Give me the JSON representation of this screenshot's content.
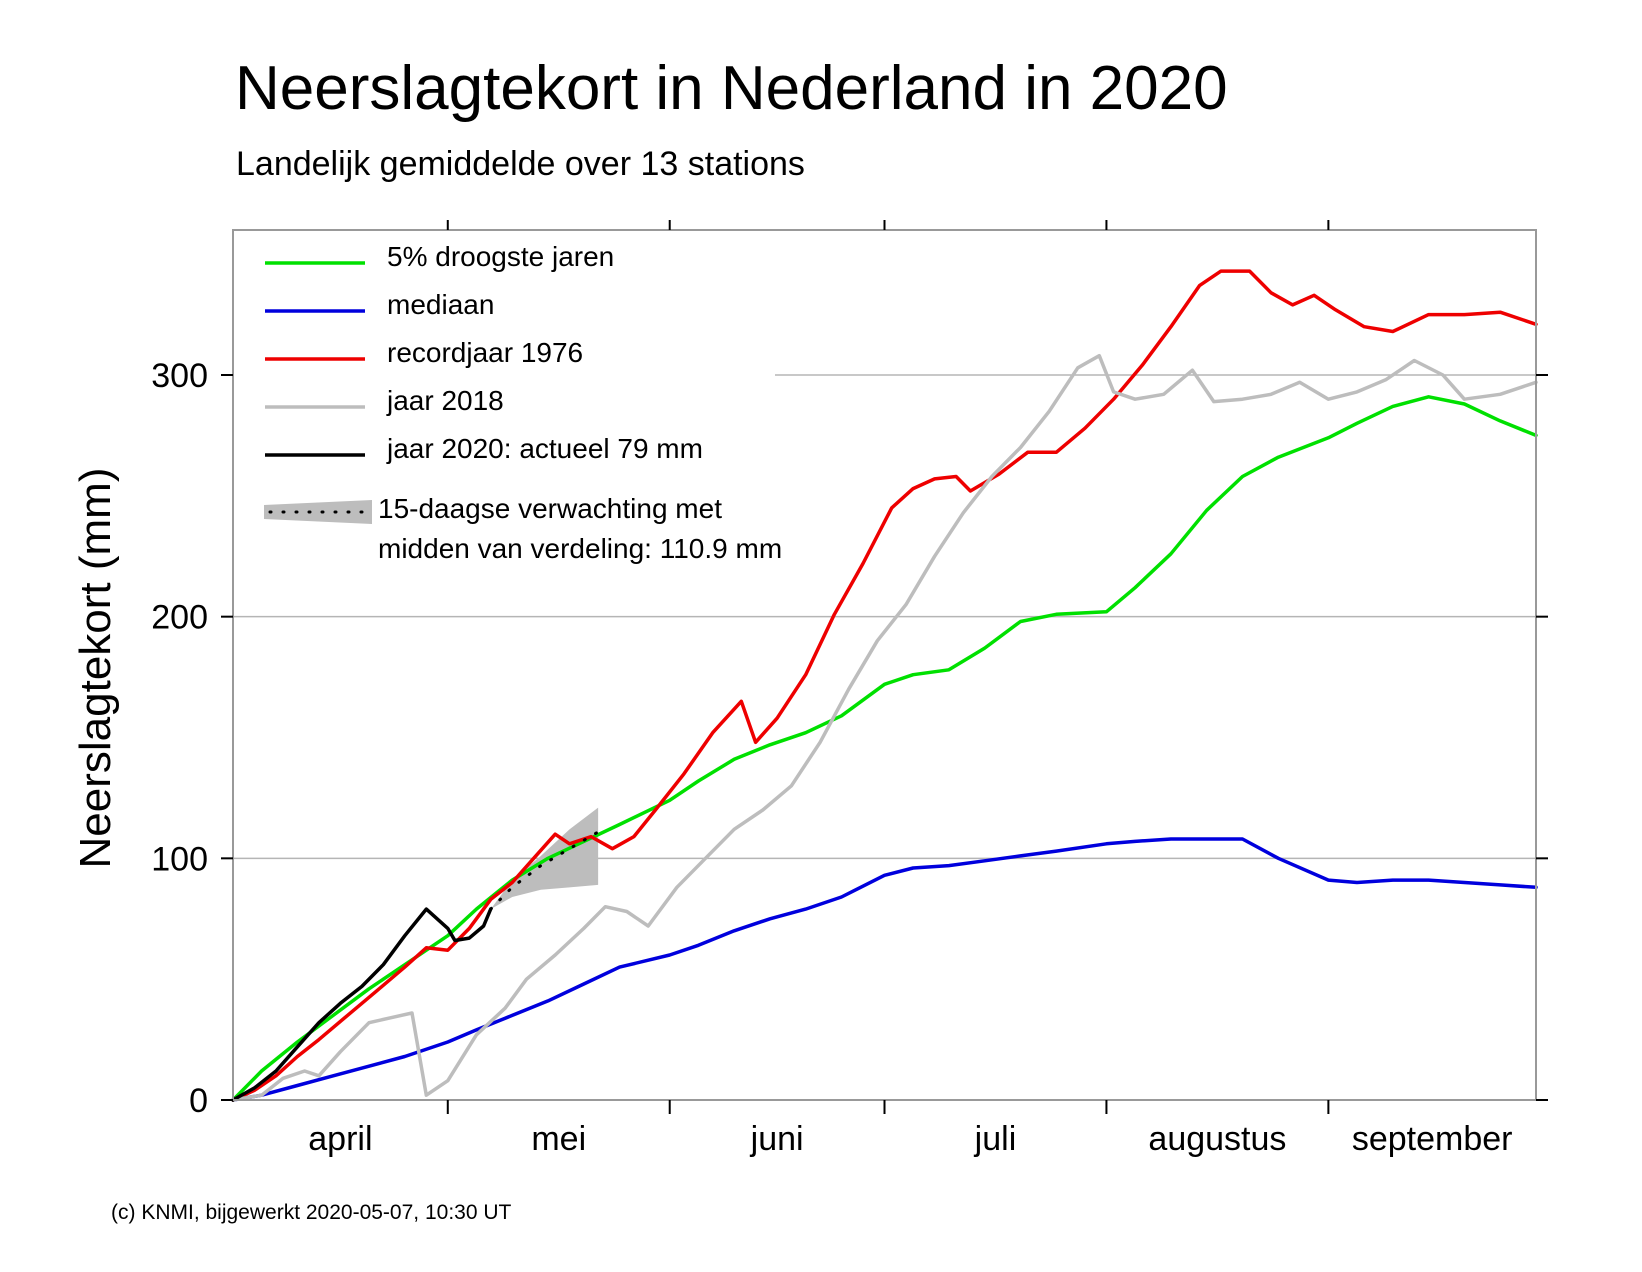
{
  "chart_data": {
    "type": "line",
    "title": "Neerslagtekort in Nederland in 2020",
    "subtitle": "Landelijk gemiddelde over 13 stations",
    "ylabel": "Neerslagtekort (mm)",
    "xlabel": "",
    "ylim": [
      0,
      360
    ],
    "x_range": [
      "2020-04-01",
      "2020-09-30"
    ],
    "yticks": [
      0,
      100,
      200,
      300
    ],
    "month_labels": [
      "april",
      "mei",
      "juni",
      "juli",
      "augustus",
      "september"
    ],
    "month_starts": [
      "2020-04-01",
      "2020-05-01",
      "2020-06-01",
      "2020-07-01",
      "2020-08-01",
      "2020-09-01",
      "2020-10-01"
    ],
    "grid": true,
    "legend_position": "top-left",
    "footer": "(c) KNMI, bijgewerkt 2020-05-07, 10:30 UT",
    "series": [
      {
        "name": "5% droogste jaren",
        "color": "#00e000",
        "points": [
          [
            "2020-04-01",
            0
          ],
          [
            "2020-04-05",
            12
          ],
          [
            "2020-04-10",
            24
          ],
          [
            "2020-04-15",
            35
          ],
          [
            "2020-04-20",
            46
          ],
          [
            "2020-04-25",
            56
          ],
          [
            "2020-05-01",
            68
          ],
          [
            "2020-05-05",
            79
          ],
          [
            "2020-05-10",
            91
          ],
          [
            "2020-05-15",
            100
          ],
          [
            "2020-05-20",
            107
          ],
          [
            "2020-05-25",
            114
          ],
          [
            "2020-06-01",
            124
          ],
          [
            "2020-06-05",
            132
          ],
          [
            "2020-06-10",
            141
          ],
          [
            "2020-06-15",
            147
          ],
          [
            "2020-06-20",
            152
          ],
          [
            "2020-06-25",
            159
          ],
          [
            "2020-07-01",
            172
          ],
          [
            "2020-07-05",
            176
          ],
          [
            "2020-07-10",
            178
          ],
          [
            "2020-07-15",
            187
          ],
          [
            "2020-07-20",
            198
          ],
          [
            "2020-07-25",
            201
          ],
          [
            "2020-08-01",
            202
          ],
          [
            "2020-08-05",
            212
          ],
          [
            "2020-08-10",
            226
          ],
          [
            "2020-08-15",
            244
          ],
          [
            "2020-08-20",
            258
          ],
          [
            "2020-08-25",
            266
          ],
          [
            "2020-09-01",
            274
          ],
          [
            "2020-09-05",
            280
          ],
          [
            "2020-09-10",
            287
          ],
          [
            "2020-09-15",
            291
          ],
          [
            "2020-09-20",
            288
          ],
          [
            "2020-09-25",
            281
          ],
          [
            "2020-09-30",
            275
          ]
        ]
      },
      {
        "name": "mediaan",
        "color": "#0000dd",
        "points": [
          [
            "2020-04-01",
            0
          ],
          [
            "2020-04-05",
            2
          ],
          [
            "2020-04-10",
            6
          ],
          [
            "2020-04-15",
            10
          ],
          [
            "2020-04-20",
            14
          ],
          [
            "2020-04-25",
            18
          ],
          [
            "2020-05-01",
            24
          ],
          [
            "2020-05-05",
            29
          ],
          [
            "2020-05-10",
            35
          ],
          [
            "2020-05-15",
            41
          ],
          [
            "2020-05-20",
            48
          ],
          [
            "2020-05-25",
            55
          ],
          [
            "2020-06-01",
            60
          ],
          [
            "2020-06-05",
            64
          ],
          [
            "2020-06-10",
            70
          ],
          [
            "2020-06-15",
            75
          ],
          [
            "2020-06-20",
            79
          ],
          [
            "2020-06-25",
            84
          ],
          [
            "2020-07-01",
            93
          ],
          [
            "2020-07-05",
            96
          ],
          [
            "2020-07-10",
            97
          ],
          [
            "2020-07-15",
            99
          ],
          [
            "2020-07-20",
            101
          ],
          [
            "2020-07-25",
            103
          ],
          [
            "2020-08-01",
            106
          ],
          [
            "2020-08-05",
            107
          ],
          [
            "2020-08-10",
            108
          ],
          [
            "2020-08-15",
            108
          ],
          [
            "2020-08-20",
            108
          ],
          [
            "2020-08-25",
            100
          ],
          [
            "2020-09-01",
            91
          ],
          [
            "2020-09-05",
            90
          ],
          [
            "2020-09-10",
            91
          ],
          [
            "2020-09-15",
            91
          ],
          [
            "2020-09-20",
            90
          ],
          [
            "2020-09-25",
            89
          ],
          [
            "2020-09-30",
            88
          ]
        ]
      },
      {
        "name": "recordjaar 1976",
        "color": "#ee0000",
        "points": [
          [
            "2020-04-01",
            0
          ],
          [
            "2020-04-04",
            4
          ],
          [
            "2020-04-07",
            10
          ],
          [
            "2020-04-10",
            18
          ],
          [
            "2020-04-13",
            25
          ],
          [
            "2020-04-17",
            35
          ],
          [
            "2020-04-21",
            45
          ],
          [
            "2020-04-25",
            55
          ],
          [
            "2020-04-28",
            63
          ],
          [
            "2020-05-01",
            62
          ],
          [
            "2020-05-04",
            71
          ],
          [
            "2020-05-07",
            83
          ],
          [
            "2020-05-10",
            90
          ],
          [
            "2020-05-13",
            100
          ],
          [
            "2020-05-16",
            110
          ],
          [
            "2020-05-18",
            106
          ],
          [
            "2020-05-21",
            109
          ],
          [
            "2020-05-24",
            104
          ],
          [
            "2020-05-27",
            109
          ],
          [
            "2020-05-30",
            120
          ],
          [
            "2020-06-03",
            135
          ],
          [
            "2020-06-07",
            152
          ],
          [
            "2020-06-11",
            165
          ],
          [
            "2020-06-13",
            148
          ],
          [
            "2020-06-16",
            158
          ],
          [
            "2020-06-20",
            176
          ],
          [
            "2020-06-24",
            201
          ],
          [
            "2020-06-28",
            222
          ],
          [
            "2020-07-02",
            245
          ],
          [
            "2020-07-05",
            253
          ],
          [
            "2020-07-08",
            257
          ],
          [
            "2020-07-11",
            258
          ],
          [
            "2020-07-13",
            252
          ],
          [
            "2020-07-17",
            259
          ],
          [
            "2020-07-21",
            268
          ],
          [
            "2020-07-25",
            268
          ],
          [
            "2020-07-29",
            278
          ],
          [
            "2020-08-02",
            290
          ],
          [
            "2020-08-06",
            304
          ],
          [
            "2020-08-10",
            320
          ],
          [
            "2020-08-14",
            337
          ],
          [
            "2020-08-17",
            343
          ],
          [
            "2020-08-21",
            343
          ],
          [
            "2020-08-24",
            334
          ],
          [
            "2020-08-27",
            329
          ],
          [
            "2020-08-30",
            333
          ],
          [
            "2020-09-02",
            327
          ],
          [
            "2020-09-06",
            320
          ],
          [
            "2020-09-10",
            318
          ],
          [
            "2020-09-15",
            325
          ],
          [
            "2020-09-20",
            325
          ],
          [
            "2020-09-25",
            326
          ],
          [
            "2020-09-30",
            321
          ]
        ]
      },
      {
        "name": "jaar 2018",
        "color": "#bdbdbd",
        "points": [
          [
            "2020-04-01",
            0
          ],
          [
            "2020-04-05",
            2
          ],
          [
            "2020-04-08",
            9
          ],
          [
            "2020-04-11",
            12
          ],
          [
            "2020-04-13",
            10
          ],
          [
            "2020-04-16",
            20
          ],
          [
            "2020-04-20",
            32
          ],
          [
            "2020-04-23",
            34
          ],
          [
            "2020-04-26",
            36
          ],
          [
            "2020-04-28",
            2
          ],
          [
            "2020-05-01",
            8
          ],
          [
            "2020-05-05",
            27
          ],
          [
            "2020-05-09",
            38
          ],
          [
            "2020-05-12",
            50
          ],
          [
            "2020-05-16",
            60
          ],
          [
            "2020-05-20",
            71
          ],
          [
            "2020-05-23",
            80
          ],
          [
            "2020-05-26",
            78
          ],
          [
            "2020-05-29",
            72
          ],
          [
            "2020-06-02",
            88
          ],
          [
            "2020-06-06",
            100
          ],
          [
            "2020-06-10",
            112
          ],
          [
            "2020-06-14",
            120
          ],
          [
            "2020-06-18",
            130
          ],
          [
            "2020-06-22",
            148
          ],
          [
            "2020-06-26",
            170
          ],
          [
            "2020-06-30",
            190
          ],
          [
            "2020-07-04",
            205
          ],
          [
            "2020-07-08",
            225
          ],
          [
            "2020-07-12",
            243
          ],
          [
            "2020-07-16",
            258
          ],
          [
            "2020-07-20",
            270
          ],
          [
            "2020-07-24",
            285
          ],
          [
            "2020-07-28",
            303
          ],
          [
            "2020-07-31",
            308
          ],
          [
            "2020-08-02",
            293
          ],
          [
            "2020-08-05",
            290
          ],
          [
            "2020-08-09",
            292
          ],
          [
            "2020-08-13",
            302
          ],
          [
            "2020-08-16",
            289
          ],
          [
            "2020-08-20",
            290
          ],
          [
            "2020-08-24",
            292
          ],
          [
            "2020-08-28",
            297
          ],
          [
            "2020-09-01",
            290
          ],
          [
            "2020-09-05",
            293
          ],
          [
            "2020-09-09",
            298
          ],
          [
            "2020-09-13",
            306
          ],
          [
            "2020-09-17",
            300
          ],
          [
            "2020-09-20",
            290
          ],
          [
            "2020-09-25",
            292
          ],
          [
            "2020-09-30",
            297
          ]
        ]
      },
      {
        "name": "jaar 2020: actueel 79 mm",
        "color": "#000000",
        "points": [
          [
            "2020-04-01",
            0
          ],
          [
            "2020-04-04",
            5
          ],
          [
            "2020-04-07",
            12
          ],
          [
            "2020-04-10",
            22
          ],
          [
            "2020-04-13",
            32
          ],
          [
            "2020-04-16",
            40
          ],
          [
            "2020-04-19",
            47
          ],
          [
            "2020-04-22",
            56
          ],
          [
            "2020-04-25",
            68
          ],
          [
            "2020-04-28",
            79
          ],
          [
            "2020-05-01",
            71
          ],
          [
            "2020-05-02",
            66
          ],
          [
            "2020-05-04",
            67
          ],
          [
            "2020-05-06",
            72
          ],
          [
            "2020-05-07",
            79
          ]
        ]
      }
    ],
    "forecast": {
      "name": "15-daagse verwachting met",
      "name_line2": "midden van verdeling: 110.9 mm",
      "median": [
        [
          "2020-05-07",
          79
        ],
        [
          "2020-05-10",
          88
        ],
        [
          "2020-05-14",
          97
        ],
        [
          "2020-05-18",
          104
        ],
        [
          "2020-05-22",
          110.9
        ]
      ],
      "band_low": [
        [
          "2020-05-07",
          79
        ],
        [
          "2020-05-10",
          84
        ],
        [
          "2020-05-14",
          87
        ],
        [
          "2020-05-18",
          88
        ],
        [
          "2020-05-22",
          89
        ]
      ],
      "band_high": [
        [
          "2020-05-07",
          79
        ],
        [
          "2020-05-10",
          91
        ],
        [
          "2020-05-14",
          101
        ],
        [
          "2020-05-18",
          112
        ],
        [
          "2020-05-22",
          121
        ]
      ],
      "band_color": "#bdbdbd"
    }
  }
}
